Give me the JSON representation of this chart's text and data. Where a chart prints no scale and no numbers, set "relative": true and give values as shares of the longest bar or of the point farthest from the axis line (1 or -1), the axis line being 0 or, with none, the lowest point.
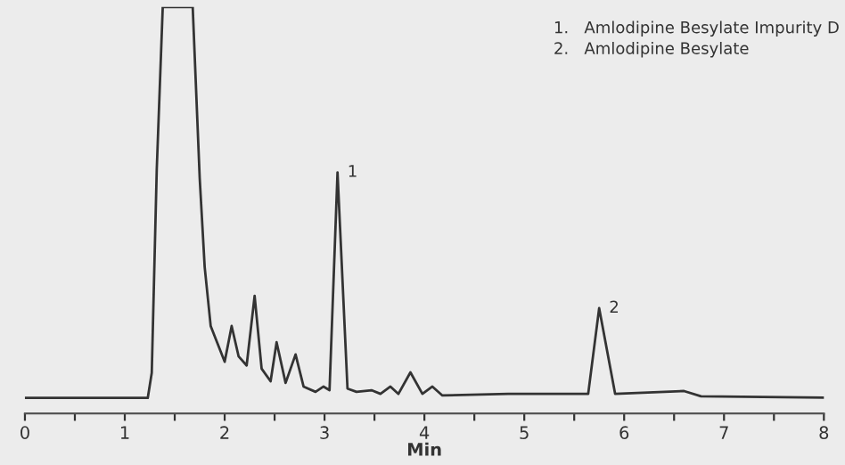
{
  "chart_data": {
    "type": "line",
    "relative": true,
    "xlabel": "Min",
    "xlim": [
      0,
      8
    ],
    "xticks": [
      0,
      {
        "value": 0.5,
        "label": null
      },
      1,
      {
        "value": 1.5,
        "label": null
      },
      2,
      {
        "value": 2.5,
        "label": null
      },
      3,
      {
        "value": 3.5,
        "label": null
      },
      4,
      {
        "value": 4.5,
        "label": null
      },
      5,
      {
        "value": 5.5,
        "label": null
      },
      6,
      {
        "value": 6.5,
        "label": null
      },
      7,
      {
        "value": 7.5,
        "label": null
      },
      8
    ],
    "series": [
      {
        "color": "#333333",
        "x": [
          0,
          1.23,
          1.27,
          1.32,
          1.38,
          1.68,
          1.75,
          1.8,
          1.86,
          2.0,
          2.07,
          2.14,
          2.22,
          2.3,
          2.37,
          2.46,
          2.52,
          2.61,
          2.71,
          2.79,
          2.91,
          2.99,
          3.05,
          3.13,
          3.23,
          3.32,
          3.47,
          3.56,
          3.66,
          3.74,
          3.86,
          3.98,
          4.08,
          4.18,
          4.84,
          5.64,
          5.75,
          5.91,
          6.6,
          6.77,
          8.0
        ],
        "values": [
          0.038,
          0.038,
          0.1,
          0.6,
          1.0,
          1.0,
          0.579,
          0.36,
          0.215,
          0.127,
          0.215,
          0.14,
          0.118,
          0.289,
          0.11,
          0.079,
          0.175,
          0.075,
          0.145,
          0.066,
          0.053,
          0.066,
          0.057,
          0.593,
          0.061,
          0.053,
          0.057,
          0.048,
          0.066,
          0.048,
          0.101,
          0.048,
          0.066,
          0.044,
          0.048,
          0.048,
          0.259,
          0.048,
          0.055,
          0.042,
          0.039
        ]
      }
    ],
    "annotations": [
      {
        "text": "1",
        "x": 3.13,
        "y": 0.593
      },
      {
        "text": "2",
        "x": 5.75,
        "y": 0.259
      },
      "1.   Amlodipine Besylate Impurity D",
      "2.   Amlodipine Besylate"
    ],
    "grid": false,
    "legend": false
  }
}
